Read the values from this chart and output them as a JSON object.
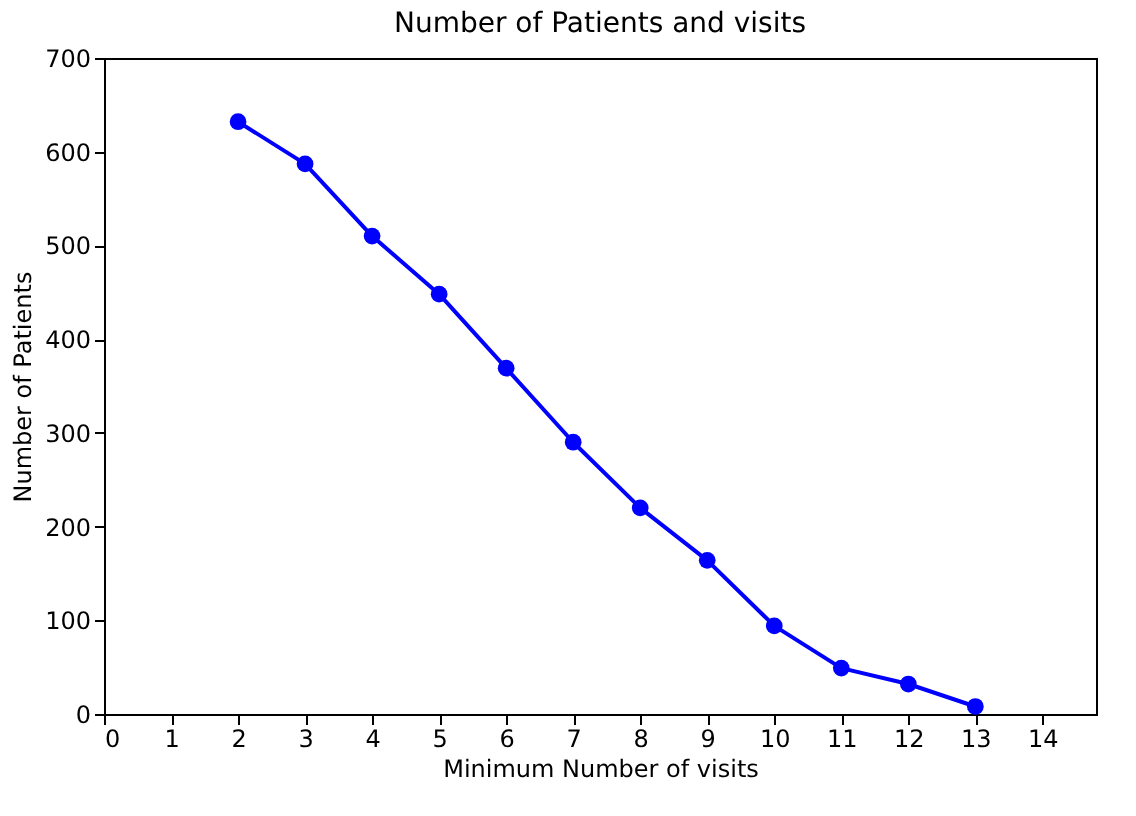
{
  "chart_data": {
    "type": "line",
    "title": "Number of Patients and visits",
    "xlabel": "Minimum Number of visits",
    "ylabel": "Number of Patients",
    "x": [
      2,
      3,
      4,
      5,
      6,
      7,
      8,
      9,
      10,
      11,
      12,
      13
    ],
    "series": [
      {
        "color": "#0000ff",
        "values": [
          632,
          587,
          510,
          448,
          369,
          290,
          220,
          164,
          94,
          49,
          32,
          8
        ]
      }
    ],
    "xlim": [
      0,
      14.8
    ],
    "xticks": [
      0,
      1,
      2,
      3,
      4,
      5,
      6,
      7,
      8,
      9,
      10,
      11,
      12,
      13,
      14
    ],
    "ylim": [
      0,
      700
    ],
    "yticks": [
      0,
      100,
      200,
      300,
      400,
      500,
      600,
      700
    ],
    "grid": false,
    "marker": "circle",
    "line_style": "solid"
  }
}
